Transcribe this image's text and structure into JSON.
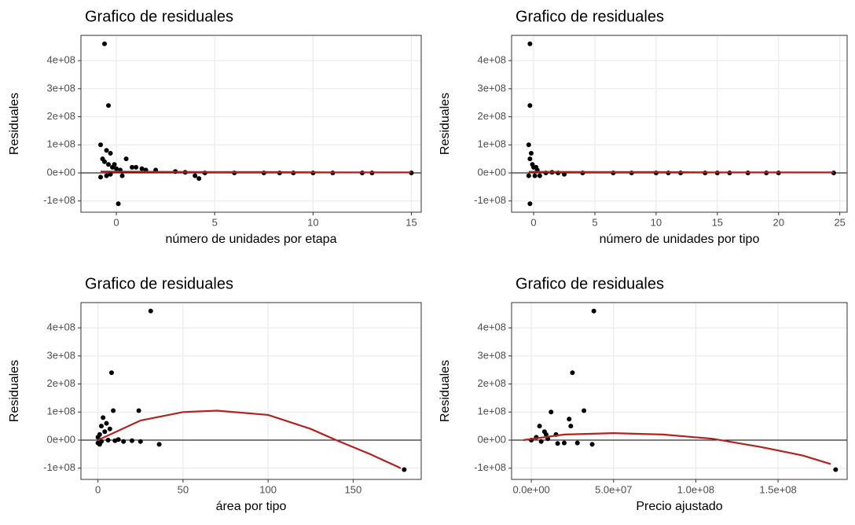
{
  "chart_data": [
    {
      "type": "scatter",
      "title": "Grafico de residuales",
      "xlabel": "número de unidades por etapa",
      "ylabel": "Residuales",
      "xlim": [
        -1.8,
        15.5
      ],
      "ylim": [
        -140000000.0,
        490000000.0
      ],
      "xticks": [
        0,
        5,
        10,
        15
      ],
      "yticks": [
        {
          "value": -100000000.0,
          "label": "-1e+08"
        },
        {
          "value": 0,
          "label": "0e+00"
        },
        {
          "value": 100000000.0,
          "label": "1e+08"
        },
        {
          "value": 200000000.0,
          "label": "2e+08"
        },
        {
          "value": 300000000.0,
          "label": "3e+08"
        },
        {
          "value": 400000000.0,
          "label": "4e+08"
        }
      ],
      "grid": true,
      "hline": 0,
      "points": {
        "color": "#000000",
        "x": [
          -0.6,
          -0.4,
          -0.8,
          -0.5,
          -0.3,
          -0.7,
          -0.6,
          -0.4,
          -0.2,
          0.1,
          -0.8,
          -0.5,
          0,
          0.2,
          0.5,
          0.8,
          1.0,
          1.3,
          1.5,
          2.0,
          3.0,
          3.5,
          4.0,
          4.2,
          4.5,
          6,
          7.5,
          8.3,
          9,
          10,
          11,
          12.5,
          13,
          15,
          -0.3,
          0.3,
          -0.1
        ],
        "y": [
          460000000.0,
          240000000.0,
          100000000.0,
          80000000.0,
          70000000.0,
          50000000.0,
          40000000.0,
          30000000.0,
          20000000.0,
          -110000000.0,
          -15000000.0,
          -10000000.0,
          15000000.0,
          10000000.0,
          50000000.0,
          20000000.0,
          20000000.0,
          15000000.0,
          10000000.0,
          10000000.0,
          5000000.0,
          2000000.0,
          -10000000.0,
          -20000000.0,
          0,
          0,
          0,
          0,
          0,
          0,
          0,
          0,
          0,
          0,
          -5000000.0,
          -10000000.0,
          30000000.0
        ]
      },
      "smooth": {
        "color": "#b22222",
        "x": [
          -0.8,
          2,
          5,
          8,
          11,
          15
        ],
        "y": [
          5000000.0,
          4000000.0,
          3000000.0,
          3000000.0,
          2000000.0,
          2000000.0
        ]
      }
    },
    {
      "type": "scatter",
      "title": "Grafico de residuales",
      "xlabel": "número de unidades por tipo",
      "ylabel": "Residuales",
      "xlim": [
        -1.8,
        25.6
      ],
      "ylim": [
        -140000000.0,
        490000000.0
      ],
      "xticks": [
        0,
        5,
        10,
        15,
        20,
        25
      ],
      "yticks": [
        {
          "value": -100000000.0,
          "label": "-1e+08"
        },
        {
          "value": 0,
          "label": "0e+00"
        },
        {
          "value": 100000000.0,
          "label": "1e+08"
        },
        {
          "value": 200000000.0,
          "label": "2e+08"
        },
        {
          "value": 300000000.0,
          "label": "3e+08"
        },
        {
          "value": 400000000.0,
          "label": "4e+08"
        }
      ],
      "grid": true,
      "hline": 0,
      "points": {
        "color": "#000000",
        "x": [
          -0.3,
          -0.3,
          -0.4,
          -0.2,
          -0.3,
          -0.1,
          0,
          -0.4,
          -0.3,
          0.3,
          0.5,
          1,
          1.5,
          2,
          2.5,
          4,
          6.5,
          8,
          10,
          11,
          12,
          14,
          15,
          16,
          17.5,
          19,
          20,
          24.5,
          0.2,
          0.1
        ],
        "y": [
          460000000.0,
          240000000.0,
          100000000.0,
          70000000.0,
          50000000.0,
          30000000.0,
          20000000.0,
          -10000000.0,
          -110000000.0,
          10000000.0,
          -10000000.0,
          0,
          2000000.0,
          0,
          -5000000.0,
          0,
          0,
          0,
          0,
          0,
          0,
          0,
          0,
          0,
          0,
          0,
          0,
          0,
          20000000.0,
          -10000000.0
        ]
      },
      "smooth": {
        "color": "#b22222",
        "x": [
          -0.4,
          5,
          10,
          15,
          20,
          24.5
        ],
        "y": [
          4000000.0,
          3000000.0,
          3000000.0,
          2000000.0,
          2000000.0,
          2000000.0
        ]
      }
    },
    {
      "type": "scatter",
      "title": "Grafico de residuales",
      "xlabel": "área por tipo",
      "ylabel": "Residuales",
      "xlim": [
        -10,
        190
      ],
      "ylim": [
        -140000000.0,
        490000000.0
      ],
      "xticks": [
        0,
        50,
        100,
        150
      ],
      "yticks": [
        {
          "value": -100000000.0,
          "label": "-1e+08"
        },
        {
          "value": 0,
          "label": "0e+00"
        },
        {
          "value": 100000000.0,
          "label": "1e+08"
        },
        {
          "value": 200000000.0,
          "label": "2e+08"
        },
        {
          "value": 300000000.0,
          "label": "3e+08"
        },
        {
          "value": 400000000.0,
          "label": "4e+08"
        }
      ],
      "grid": true,
      "hline": 0,
      "points": {
        "color": "#000000",
        "x": [
          31,
          8,
          9,
          24,
          3,
          5,
          2,
          4,
          1,
          0,
          0,
          2,
          6,
          10,
          15,
          20,
          25,
          36,
          180,
          12,
          7,
          1
        ],
        "y": [
          460000000.0,
          240000000.0,
          105000000.0,
          105000000.0,
          80000000.0,
          60000000.0,
          50000000.0,
          30000000.0,
          20000000.0,
          10000000.0,
          -10000000.0,
          -5000000.0,
          0,
          -2000000.0,
          -5000000.0,
          -2000000.0,
          -5000000.0,
          -15000000.0,
          -105000000.0,
          2000000.0,
          40000000.0,
          -15000000.0
        ]
      },
      "smooth": {
        "color": "#b22222",
        "x": [
          0,
          25,
          50,
          70,
          100,
          125,
          140,
          160,
          178
        ],
        "y": [
          0,
          70000000.0,
          100000000.0,
          105000000.0,
          90000000.0,
          40000000.0,
          0,
          -50000000.0,
          -100000000.0
        ]
      }
    },
    {
      "type": "scatter",
      "title": "Grafico de residuales",
      "xlabel": "Precio ajustado",
      "ylabel": "Residuales",
      "xlim": [
        -12000000.0,
        192000000.0
      ],
      "ylim": [
        -140000000.0,
        490000000.0
      ],
      "xticks": [
        {
          "value": 0,
          "label": "0.0e+00"
        },
        {
          "value": 50000000.0,
          "label": "5.0e+07"
        },
        {
          "value": 100000000.0,
          "label": "1.0e+08"
        },
        {
          "value": 150000000.0,
          "label": "1.5e+08"
        }
      ],
      "yticks": [
        {
          "value": -100000000.0,
          "label": "-1e+08"
        },
        {
          "value": 0,
          "label": "0e+00"
        },
        {
          "value": 100000000.0,
          "label": "1e+08"
        },
        {
          "value": 200000000.0,
          "label": "2e+08"
        },
        {
          "value": 300000000.0,
          "label": "3e+08"
        },
        {
          "value": 400000000.0,
          "label": "4e+08"
        }
      ],
      "grid": true,
      "hline": 0,
      "points": {
        "color": "#000000",
        "x": [
          38000000.0,
          25000000.0,
          32000000.0,
          12000000.0,
          23000000.0,
          5000000.0,
          24000000.0,
          8000000.0,
          15000000.0,
          0,
          3000000.0,
          10000000.0,
          20000000.0,
          37000000.0,
          16000000.0,
          185000000.0,
          6000000.0,
          28000000.0,
          9000000.0
        ],
        "y": [
          460000000.0,
          240000000.0,
          105000000.0,
          100000000.0,
          75000000.0,
          50000000.0,
          50000000.0,
          30000000.0,
          20000000.0,
          0,
          10000000.0,
          5000000.0,
          -10000000.0,
          -15000000.0,
          -12000000.0,
          -105000000.0,
          -5000000.0,
          -10000000.0,
          20000000.0
        ]
      },
      "smooth": {
        "color": "#b22222",
        "x": [
          -5000000.0,
          20000000.0,
          50000000.0,
          80000000.0,
          110000000.0,
          140000000.0,
          165000000.0,
          182000000.0
        ],
        "y": [
          0,
          20000000.0,
          25000000.0,
          20000000.0,
          5000000.0,
          -25000000.0,
          -55000000.0,
          -85000000.0
        ]
      }
    }
  ]
}
